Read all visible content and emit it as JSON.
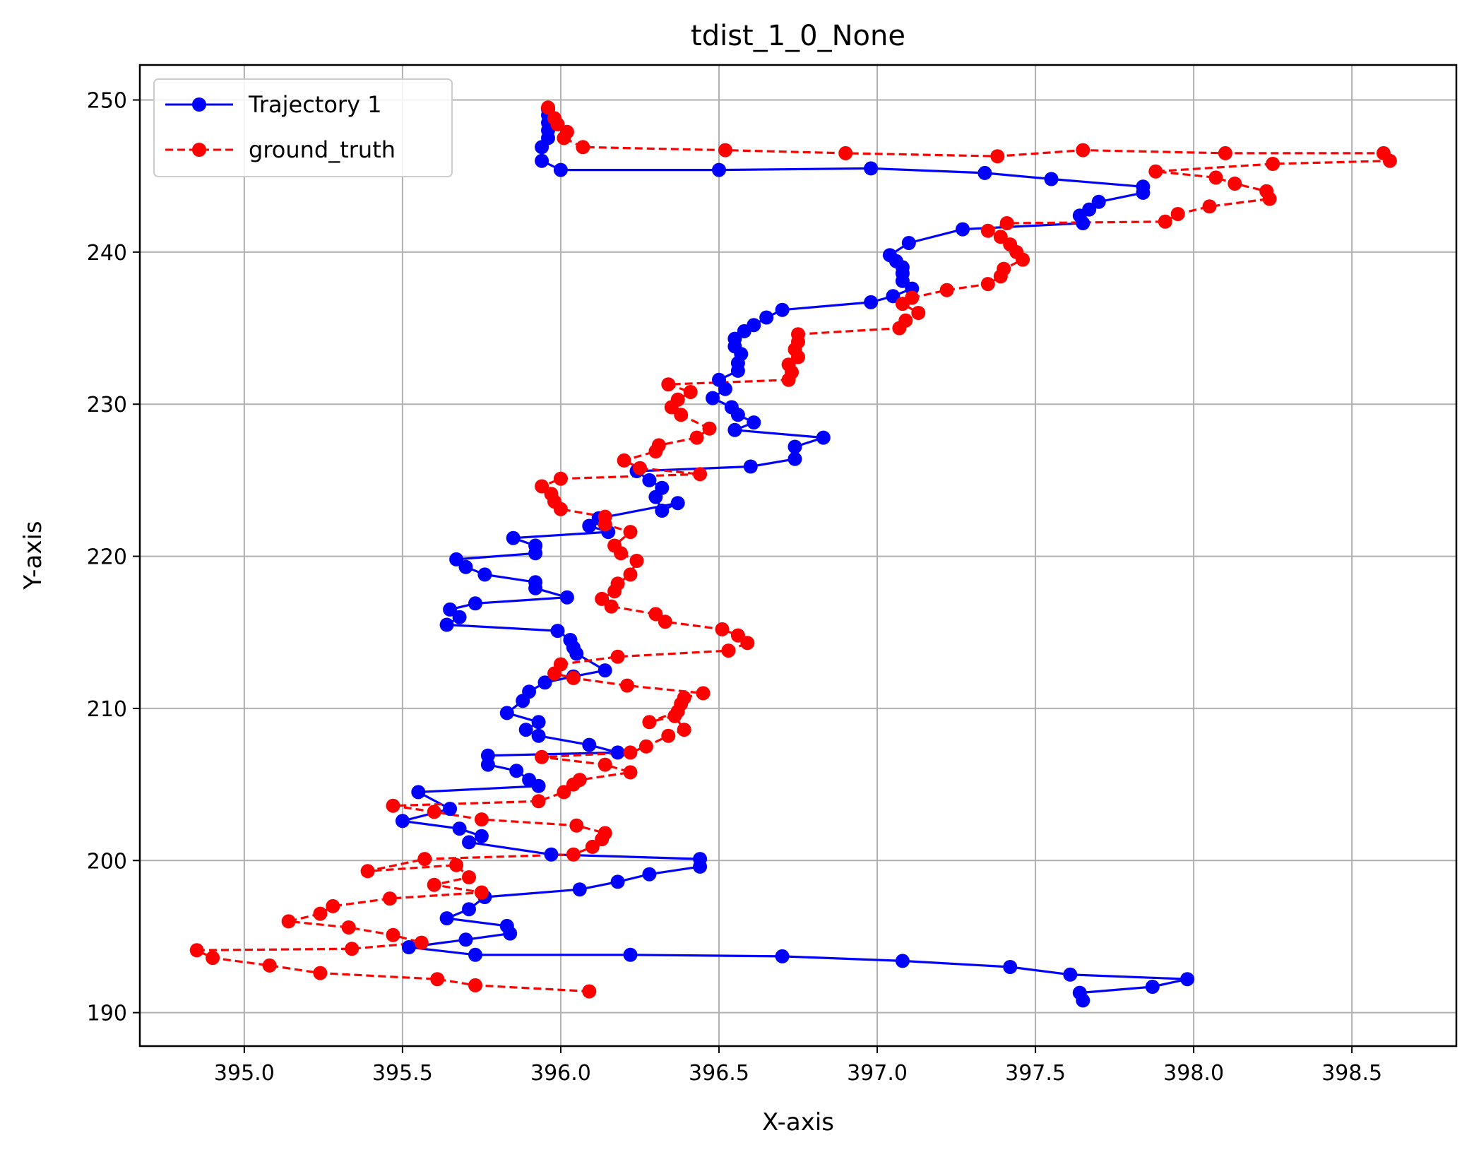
{
  "chart_data": {
    "type": "line",
    "title": "tdist_1_0_None",
    "xlabel": "X-axis",
    "ylabel": "Y-axis",
    "xlim": [
      394.67,
      398.83
    ],
    "ylim": [
      187.8,
      252.3
    ],
    "xticks": [
      395.0,
      395.5,
      396.0,
      396.5,
      397.0,
      397.5,
      398.0,
      398.5
    ],
    "xtick_labels": [
      "395.0",
      "395.5",
      "396.0",
      "396.5",
      "397.0",
      "397.5",
      "398.0",
      "398.5"
    ],
    "yticks": [
      190,
      200,
      210,
      220,
      230,
      240,
      250
    ],
    "ytick_labels": [
      "190",
      "200",
      "210",
      "220",
      "230",
      "240",
      "250"
    ],
    "grid": true,
    "legend_position": "top-left",
    "series": [
      {
        "name": "Trajectory 1",
        "color": "#0000ff",
        "linestyle": "solid",
        "marker": "circle",
        "points": [
          [
            397.65,
            190.8
          ],
          [
            397.64,
            191.3
          ],
          [
            397.87,
            191.7
          ],
          [
            397.98,
            192.2
          ],
          [
            397.61,
            192.5
          ],
          [
            397.42,
            193.0
          ],
          [
            397.08,
            193.4
          ],
          [
            396.7,
            193.7
          ],
          [
            396.22,
            193.8
          ],
          [
            395.73,
            193.8
          ],
          [
            395.52,
            194.3
          ],
          [
            395.7,
            194.8
          ],
          [
            395.84,
            195.2
          ],
          [
            395.83,
            195.7
          ],
          [
            395.64,
            196.2
          ],
          [
            395.71,
            196.8
          ],
          [
            395.76,
            197.6
          ],
          [
            396.06,
            198.1
          ],
          [
            396.18,
            198.6
          ],
          [
            396.28,
            199.1
          ],
          [
            396.44,
            199.6
          ],
          [
            396.44,
            200.1
          ],
          [
            395.97,
            200.4
          ],
          [
            395.71,
            201.2
          ],
          [
            395.75,
            201.6
          ],
          [
            395.68,
            202.1
          ],
          [
            395.5,
            202.6
          ],
          [
            395.65,
            203.4
          ],
          [
            395.55,
            204.5
          ],
          [
            395.93,
            204.9
          ],
          [
            395.9,
            205.3
          ],
          [
            395.86,
            205.9
          ],
          [
            395.77,
            206.3
          ],
          [
            395.77,
            206.9
          ],
          [
            396.18,
            207.1
          ],
          [
            396.09,
            207.6
          ],
          [
            395.93,
            208.2
          ],
          [
            395.89,
            208.6
          ],
          [
            395.93,
            209.1
          ],
          [
            395.83,
            209.7
          ],
          [
            395.88,
            210.5
          ],
          [
            395.9,
            211.1
          ],
          [
            395.95,
            211.7
          ],
          [
            396.04,
            212.1
          ],
          [
            396.14,
            212.5
          ],
          [
            396.05,
            213.6
          ],
          [
            396.04,
            214.0
          ],
          [
            396.03,
            214.5
          ],
          [
            395.99,
            215.1
          ],
          [
            395.64,
            215.5
          ],
          [
            395.68,
            216.0
          ],
          [
            395.65,
            216.5
          ],
          [
            395.73,
            216.9
          ],
          [
            396.02,
            217.3
          ],
          [
            395.92,
            217.9
          ],
          [
            395.92,
            218.3
          ],
          [
            395.76,
            218.8
          ],
          [
            395.7,
            219.3
          ],
          [
            395.67,
            219.8
          ],
          [
            395.92,
            220.2
          ],
          [
            395.92,
            220.7
          ],
          [
            395.85,
            221.2
          ],
          [
            396.15,
            221.6
          ],
          [
            396.09,
            222.0
          ],
          [
            396.12,
            222.5
          ],
          [
            396.37,
            223.5
          ],
          [
            396.32,
            223.0
          ],
          [
            396.3,
            223.9
          ],
          [
            396.32,
            224.5
          ],
          [
            396.28,
            225.0
          ],
          [
            396.24,
            225.6
          ],
          [
            396.6,
            225.9
          ],
          [
            396.74,
            226.4
          ],
          [
            396.74,
            227.2
          ],
          [
            396.83,
            227.8
          ],
          [
            396.55,
            228.3
          ],
          [
            396.61,
            228.8
          ],
          [
            396.56,
            229.3
          ],
          [
            396.54,
            229.8
          ],
          [
            396.48,
            230.4
          ],
          [
            396.52,
            231.0
          ],
          [
            396.5,
            231.6
          ],
          [
            396.56,
            232.2
          ],
          [
            396.56,
            232.7
          ],
          [
            396.57,
            233.3
          ],
          [
            396.55,
            233.8
          ],
          [
            396.55,
            234.3
          ],
          [
            396.58,
            234.8
          ],
          [
            396.61,
            235.2
          ],
          [
            396.65,
            235.7
          ],
          [
            396.7,
            236.2
          ],
          [
            396.98,
            236.7
          ],
          [
            397.05,
            237.1
          ],
          [
            397.11,
            237.6
          ],
          [
            397.08,
            238.1
          ],
          [
            397.08,
            238.6
          ],
          [
            397.08,
            239.0
          ],
          [
            397.06,
            239.4
          ],
          [
            397.04,
            239.8
          ],
          [
            397.1,
            240.6
          ],
          [
            397.27,
            241.5
          ],
          [
            397.65,
            241.9
          ],
          [
            397.64,
            242.4
          ],
          [
            397.67,
            242.8
          ],
          [
            397.7,
            243.3
          ],
          [
            397.84,
            243.9
          ],
          [
            397.84,
            244.3
          ],
          [
            397.55,
            244.8
          ],
          [
            397.34,
            245.2
          ],
          [
            396.98,
            245.5
          ],
          [
            396.5,
            245.4
          ],
          [
            396.0,
            245.4
          ],
          [
            395.94,
            246.0
          ],
          [
            395.94,
            246.9
          ],
          [
            395.96,
            247.5
          ],
          [
            395.96,
            248.0
          ],
          [
            395.96,
            248.5
          ],
          [
            395.96,
            249.0
          ],
          [
            395.96,
            249.4
          ]
        ]
      },
      {
        "name": "ground_truth",
        "color": "#ff0000",
        "linestyle": "dashed",
        "marker": "circle",
        "points": [
          [
            396.09,
            191.4
          ],
          [
            395.73,
            191.8
          ],
          [
            395.61,
            192.2
          ],
          [
            395.24,
            192.6
          ],
          [
            395.08,
            193.1
          ],
          [
            394.9,
            193.6
          ],
          [
            394.85,
            194.1
          ],
          [
            395.34,
            194.2
          ],
          [
            395.56,
            194.6
          ],
          [
            395.47,
            195.1
          ],
          [
            395.33,
            195.6
          ],
          [
            395.14,
            196.0
          ],
          [
            395.24,
            196.5
          ],
          [
            395.28,
            197.0
          ],
          [
            395.46,
            197.5
          ],
          [
            395.75,
            197.9
          ],
          [
            395.6,
            198.4
          ],
          [
            395.71,
            198.9
          ],
          [
            395.67,
            199.7
          ],
          [
            395.39,
            199.3
          ],
          [
            395.57,
            200.1
          ],
          [
            396.04,
            200.4
          ],
          [
            396.1,
            200.9
          ],
          [
            396.13,
            201.4
          ],
          [
            396.14,
            201.8
          ],
          [
            396.05,
            202.3
          ],
          [
            395.75,
            202.7
          ],
          [
            395.6,
            203.2
          ],
          [
            395.47,
            203.6
          ],
          [
            395.93,
            203.9
          ],
          [
            396.01,
            204.5
          ],
          [
            396.04,
            205.0
          ],
          [
            396.06,
            205.3
          ],
          [
            396.22,
            205.8
          ],
          [
            396.14,
            206.3
          ],
          [
            395.94,
            206.8
          ],
          [
            396.22,
            207.1
          ],
          [
            396.27,
            207.5
          ],
          [
            396.34,
            208.2
          ],
          [
            396.39,
            208.6
          ],
          [
            396.36,
            209.5
          ],
          [
            396.28,
            209.1
          ],
          [
            396.37,
            209.8
          ],
          [
            396.38,
            210.3
          ],
          [
            396.39,
            210.7
          ],
          [
            396.45,
            211.0
          ],
          [
            396.21,
            211.5
          ],
          [
            396.04,
            212.0
          ],
          [
            395.98,
            212.3
          ],
          [
            396.0,
            212.9
          ],
          [
            396.18,
            213.4
          ],
          [
            396.53,
            213.8
          ],
          [
            396.59,
            214.3
          ],
          [
            396.56,
            214.8
          ],
          [
            396.51,
            215.2
          ],
          [
            396.33,
            215.7
          ],
          [
            396.3,
            216.2
          ],
          [
            396.16,
            216.7
          ],
          [
            396.13,
            217.2
          ],
          [
            396.17,
            217.7
          ],
          [
            396.18,
            218.2
          ],
          [
            396.22,
            218.8
          ],
          [
            396.24,
            219.7
          ],
          [
            396.19,
            220.2
          ],
          [
            396.17,
            220.7
          ],
          [
            396.22,
            221.6
          ],
          [
            396.14,
            222.1
          ],
          [
            396.14,
            222.6
          ],
          [
            396.0,
            223.1
          ],
          [
            395.98,
            223.6
          ],
          [
            395.97,
            224.1
          ],
          [
            395.94,
            224.6
          ],
          [
            396.0,
            225.1
          ],
          [
            396.44,
            225.4
          ],
          [
            396.25,
            225.8
          ],
          [
            396.2,
            226.3
          ],
          [
            396.3,
            226.9
          ],
          [
            396.31,
            227.3
          ],
          [
            396.43,
            227.8
          ],
          [
            396.47,
            228.4
          ],
          [
            396.38,
            229.3
          ],
          [
            396.35,
            229.8
          ],
          [
            396.37,
            230.3
          ],
          [
            396.41,
            230.8
          ],
          [
            396.34,
            231.3
          ],
          [
            396.72,
            231.6
          ],
          [
            396.73,
            232.1
          ],
          [
            396.72,
            232.6
          ],
          [
            396.75,
            233.1
          ],
          [
            396.74,
            233.6
          ],
          [
            396.75,
            234.1
          ],
          [
            396.75,
            234.6
          ],
          [
            397.07,
            235.0
          ],
          [
            397.09,
            235.5
          ],
          [
            397.13,
            236.0
          ],
          [
            397.08,
            236.6
          ],
          [
            397.11,
            237.0
          ],
          [
            397.22,
            237.5
          ],
          [
            397.35,
            237.9
          ],
          [
            397.39,
            238.4
          ],
          [
            397.4,
            238.9
          ],
          [
            397.46,
            239.5
          ],
          [
            397.44,
            240.0
          ],
          [
            397.42,
            240.5
          ],
          [
            397.39,
            241.0
          ],
          [
            397.35,
            241.4
          ],
          [
            397.41,
            241.9
          ],
          [
            397.91,
            242.0
          ],
          [
            397.95,
            242.5
          ],
          [
            398.05,
            243.0
          ],
          [
            398.24,
            243.5
          ],
          [
            398.23,
            244.0
          ],
          [
            398.13,
            244.5
          ],
          [
            398.07,
            244.9
          ],
          [
            397.88,
            245.3
          ],
          [
            398.25,
            245.8
          ],
          [
            398.62,
            246.0
          ],
          [
            398.6,
            246.5
          ],
          [
            398.1,
            246.5
          ],
          [
            397.65,
            246.7
          ],
          [
            397.38,
            246.3
          ],
          [
            396.9,
            246.5
          ],
          [
            396.52,
            246.7
          ],
          [
            396.07,
            246.9
          ],
          [
            396.01,
            247.5
          ],
          [
            396.02,
            247.9
          ],
          [
            395.99,
            248.4
          ],
          [
            395.98,
            248.8
          ],
          [
            395.96,
            249.5
          ]
        ]
      }
    ]
  }
}
